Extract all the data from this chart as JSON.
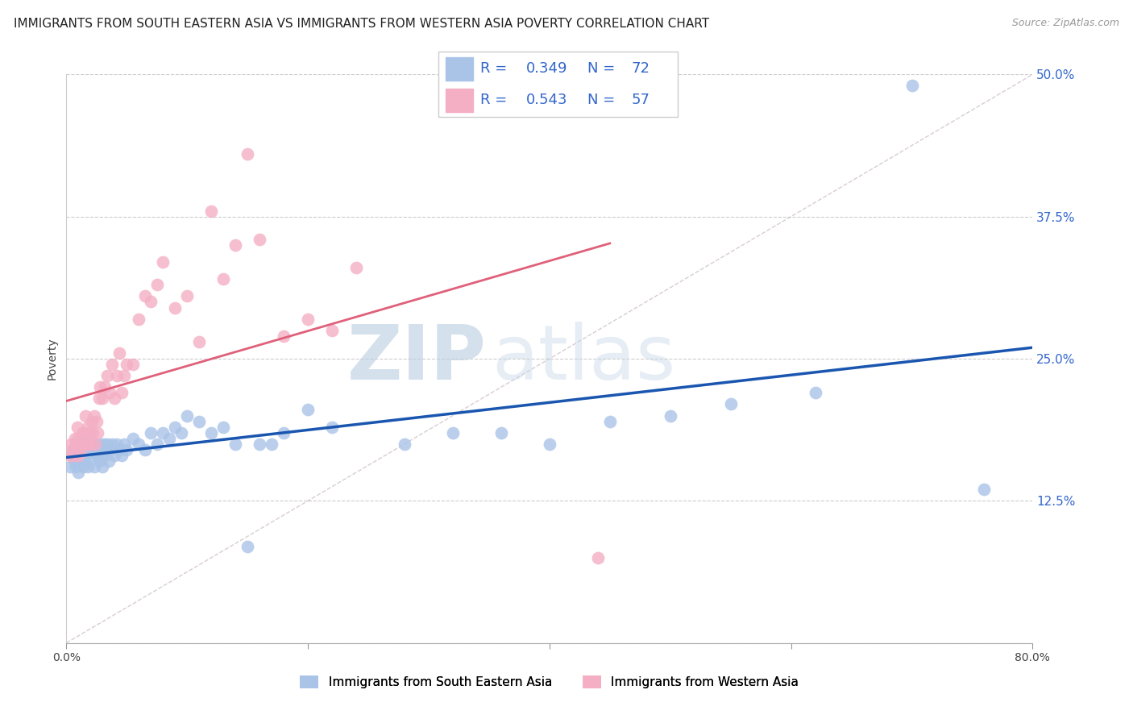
{
  "title": "IMMIGRANTS FROM SOUTH EASTERN ASIA VS IMMIGRANTS FROM WESTERN ASIA POVERTY CORRELATION CHART",
  "source": "Source: ZipAtlas.com",
  "ylabel": "Poverty",
  "x_min": 0.0,
  "x_max": 0.8,
  "y_min": 0.0,
  "y_max": 0.5,
  "yticks": [
    0.0,
    0.125,
    0.25,
    0.375,
    0.5
  ],
  "ytick_labels": [
    "",
    "12.5%",
    "25.0%",
    "37.5%",
    "50.0%"
  ],
  "xticks": [
    0.0,
    0.2,
    0.4,
    0.6,
    0.8
  ],
  "xtick_labels": [
    "0.0%",
    "",
    "",
    "",
    "80.0%"
  ],
  "series1_label": "Immigrants from South Eastern Asia",
  "series2_label": "Immigrants from Western Asia",
  "series1_color": "#aac4e8",
  "series2_color": "#f4afc5",
  "series1_line_color": "#1a56b0",
  "series2_line_color": "#e0607a",
  "R1": 0.349,
  "N1": 72,
  "R2": 0.543,
  "N2": 57,
  "legend_color": "#3366cc",
  "watermark_zip": "ZIP",
  "watermark_atlas": "atlas",
  "title_fontsize": 11,
  "blue_scatter_x": [
    0.003,
    0.005,
    0.006,
    0.007,
    0.008,
    0.009,
    0.01,
    0.01,
    0.011,
    0.012,
    0.013,
    0.014,
    0.015,
    0.015,
    0.016,
    0.017,
    0.018,
    0.019,
    0.02,
    0.021,
    0.022,
    0.023,
    0.024,
    0.025,
    0.026,
    0.027,
    0.028,
    0.029,
    0.03,
    0.031,
    0.032,
    0.033,
    0.034,
    0.035,
    0.036,
    0.038,
    0.04,
    0.042,
    0.044,
    0.046,
    0.048,
    0.05,
    0.055,
    0.06,
    0.065,
    0.07,
    0.075,
    0.08,
    0.085,
    0.09,
    0.095,
    0.1,
    0.11,
    0.12,
    0.13,
    0.14,
    0.15,
    0.16,
    0.17,
    0.18,
    0.2,
    0.22,
    0.28,
    0.32,
    0.36,
    0.4,
    0.45,
    0.5,
    0.55,
    0.62,
    0.7,
    0.76
  ],
  "blue_scatter_y": [
    0.155,
    0.165,
    0.17,
    0.16,
    0.155,
    0.17,
    0.15,
    0.175,
    0.165,
    0.16,
    0.17,
    0.155,
    0.16,
    0.175,
    0.165,
    0.17,
    0.155,
    0.18,
    0.175,
    0.165,
    0.17,
    0.155,
    0.175,
    0.165,
    0.17,
    0.16,
    0.175,
    0.165,
    0.155,
    0.175,
    0.165,
    0.17,
    0.175,
    0.16,
    0.17,
    0.175,
    0.165,
    0.175,
    0.17,
    0.165,
    0.175,
    0.17,
    0.18,
    0.175,
    0.17,
    0.185,
    0.175,
    0.185,
    0.18,
    0.19,
    0.185,
    0.2,
    0.195,
    0.185,
    0.19,
    0.175,
    0.085,
    0.175,
    0.175,
    0.185,
    0.205,
    0.19,
    0.175,
    0.185,
    0.185,
    0.175,
    0.195,
    0.2,
    0.21,
    0.22,
    0.49,
    0.135
  ],
  "pink_scatter_x": [
    0.003,
    0.004,
    0.005,
    0.006,
    0.007,
    0.008,
    0.009,
    0.01,
    0.01,
    0.011,
    0.012,
    0.013,
    0.014,
    0.015,
    0.016,
    0.017,
    0.018,
    0.019,
    0.02,
    0.021,
    0.022,
    0.023,
    0.024,
    0.025,
    0.026,
    0.027,
    0.028,
    0.03,
    0.032,
    0.034,
    0.036,
    0.038,
    0.04,
    0.042,
    0.044,
    0.046,
    0.048,
    0.05,
    0.055,
    0.06,
    0.065,
    0.07,
    0.075,
    0.08,
    0.09,
    0.1,
    0.11,
    0.12,
    0.13,
    0.14,
    0.15,
    0.16,
    0.18,
    0.2,
    0.22,
    0.24,
    0.44
  ],
  "pink_scatter_y": [
    0.165,
    0.175,
    0.17,
    0.165,
    0.18,
    0.175,
    0.19,
    0.165,
    0.18,
    0.175,
    0.17,
    0.185,
    0.175,
    0.185,
    0.2,
    0.175,
    0.19,
    0.185,
    0.175,
    0.195,
    0.185,
    0.2,
    0.175,
    0.195,
    0.185,
    0.215,
    0.225,
    0.215,
    0.225,
    0.235,
    0.22,
    0.245,
    0.215,
    0.235,
    0.255,
    0.22,
    0.235,
    0.245,
    0.245,
    0.285,
    0.305,
    0.3,
    0.315,
    0.335,
    0.295,
    0.305,
    0.265,
    0.38,
    0.32,
    0.35,
    0.43,
    0.355,
    0.27,
    0.285,
    0.275,
    0.33,
    0.075
  ]
}
